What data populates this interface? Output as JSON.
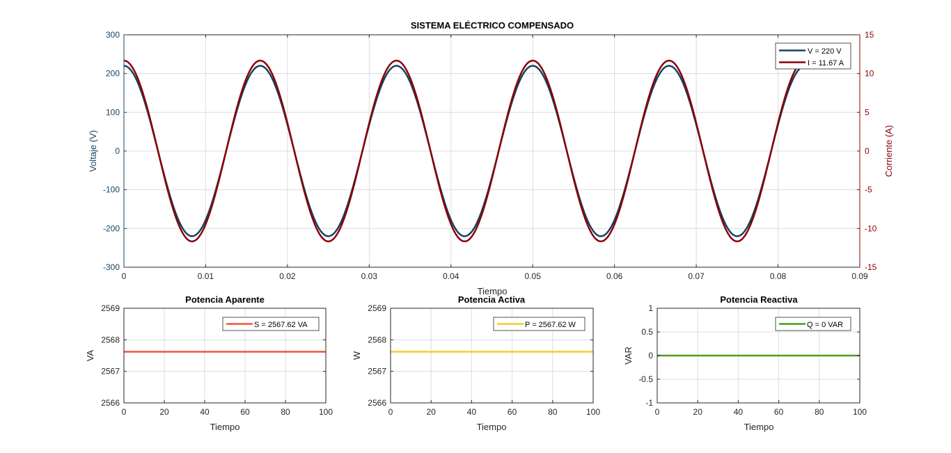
{
  "colors": {
    "voltage": "#154360",
    "current": "#8B0000",
    "apparent": "#F0533A",
    "active": "#F5CB2F",
    "reactive": "#4F9A1F",
    "axis": "#262626",
    "grid": "#dcdcdc"
  },
  "chart_data": [
    {
      "type": "line",
      "title": "SISTEMA ELÉCTRICO COMPENSADO",
      "xlabel": "Tiempo",
      "ylabel": "Voltaje (V)",
      "y2label": "Corriente (A)",
      "xlim": [
        0,
        0.09
      ],
      "ylim": [
        -300,
        300
      ],
      "y2lim": [
        -15,
        15
      ],
      "x_ticks": [
        "0",
        "0.01",
        "0.02",
        "0.03",
        "0.04",
        "0.05",
        "0.06",
        "0.07",
        "0.08",
        "0.09"
      ],
      "y_ticks": [
        "-300",
        "-200",
        "-100",
        "0",
        "100",
        "200",
        "300"
      ],
      "y2_ticks": [
        "-15",
        "-10",
        "-5",
        "0",
        "5",
        "10",
        "15"
      ],
      "frequency_hz": 60,
      "x_range": [
        0,
        0.0833
      ],
      "grid": true,
      "legend_location": "top-right",
      "series": [
        {
          "name": "V = 220 V",
          "axis": "left",
          "amplitude": 220,
          "phase": 0,
          "color_key": "voltage"
        },
        {
          "name": "I = 11.67 A",
          "axis": "right",
          "amplitude": 11.67,
          "phase": 0,
          "color_key": "current"
        }
      ]
    },
    {
      "type": "line",
      "title": "Potencia Aparente",
      "xlabel": "Tiempo",
      "ylabel": "VA",
      "xlim": [
        0,
        100
      ],
      "ylim": [
        2566,
        2569
      ],
      "x_ticks": [
        "0",
        "20",
        "40",
        "60",
        "80",
        "100"
      ],
      "y_ticks": [
        "2566",
        "2567",
        "2568",
        "2569"
      ],
      "grid": true,
      "legend_location": "top-right",
      "series": [
        {
          "name": "S = 2567.62 VA",
          "x": [
            0,
            100
          ],
          "y": [
            2567.62,
            2567.62
          ],
          "color_key": "apparent"
        }
      ]
    },
    {
      "type": "line",
      "title": "Potencia Activa",
      "xlabel": "Tiempo",
      "ylabel": "W",
      "xlim": [
        0,
        100
      ],
      "ylim": [
        2566,
        2569
      ],
      "x_ticks": [
        "0",
        "20",
        "40",
        "60",
        "80",
        "100"
      ],
      "y_ticks": [
        "2566",
        "2567",
        "2568",
        "2569"
      ],
      "grid": true,
      "legend_location": "top-right",
      "series": [
        {
          "name": "P = 2567.62 W",
          "x": [
            0,
            100
          ],
          "y": [
            2567.62,
            2567.62
          ],
          "color_key": "active"
        }
      ]
    },
    {
      "type": "line",
      "title": "Potencia Reactiva",
      "xlabel": "Tiempo",
      "ylabel": "VAR",
      "xlim": [
        0,
        100
      ],
      "ylim": [
        -1,
        1
      ],
      "x_ticks": [
        "0",
        "20",
        "40",
        "60",
        "80",
        "100"
      ],
      "y_ticks": [
        "-1",
        "-0.5",
        "0",
        "0.5",
        "1"
      ],
      "grid": true,
      "legend_location": "top-right",
      "series": [
        {
          "name": "Q = 0 VAR",
          "x": [
            0,
            100
          ],
          "y": [
            0,
            0
          ],
          "color_key": "reactive"
        }
      ]
    }
  ]
}
